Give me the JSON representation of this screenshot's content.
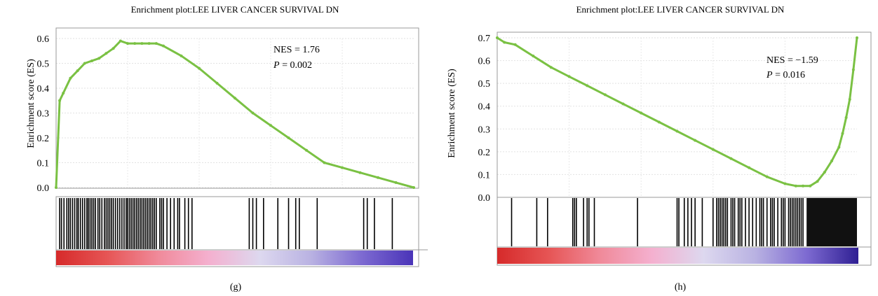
{
  "chart_data": [
    {
      "panel_label": "(g)",
      "type": "line",
      "title": "Enrichment plot:LEE LIVER CANCER SURVIVAL DN",
      "ylabel": "Enrichment score (ES)",
      "ylim": [
        0,
        0.6
      ],
      "yticks": [
        "0.0",
        "0.1",
        "0.2",
        "0.3",
        "0.4",
        "0.5",
        "0.6"
      ],
      "grid": true,
      "color": "#7ac143",
      "annotation": {
        "nes": "NES = 1.76",
        "p_symbol": "P",
        "p_rest": " = 0.002"
      },
      "series": [
        {
          "x": [
            0,
            0.01,
            0.02,
            0.04,
            0.06,
            0.08,
            0.1,
            0.12,
            0.14,
            0.16,
            0.18,
            0.2,
            0.22,
            0.24,
            0.26,
            0.28,
            0.3,
            0.35,
            0.4,
            0.45,
            0.5,
            0.55,
            0.6,
            0.65,
            0.7,
            0.75,
            0.8,
            0.85,
            0.9,
            0.95,
            1.0
          ],
          "y": [
            0.0,
            0.35,
            0.38,
            0.44,
            0.47,
            0.5,
            0.51,
            0.52,
            0.54,
            0.56,
            0.59,
            0.58,
            0.58,
            0.58,
            0.58,
            0.58,
            0.57,
            0.53,
            0.48,
            0.42,
            0.36,
            0.3,
            0.25,
            0.2,
            0.15,
            0.1,
            0.08,
            0.06,
            0.04,
            0.02,
            0.0
          ]
        }
      ],
      "hits": [
        0.01,
        0.015,
        0.022,
        0.03,
        0.035,
        0.04,
        0.046,
        0.052,
        0.058,
        0.062,
        0.068,
        0.074,
        0.08,
        0.086,
        0.09,
        0.095,
        0.1,
        0.105,
        0.11,
        0.117,
        0.122,
        0.128,
        0.135,
        0.14,
        0.145,
        0.15,
        0.155,
        0.16,
        0.166,
        0.172,
        0.178,
        0.184,
        0.19,
        0.196,
        0.2,
        0.205,
        0.21,
        0.215,
        0.22,
        0.225,
        0.23,
        0.235,
        0.24,
        0.245,
        0.25,
        0.255,
        0.26,
        0.265,
        0.27,
        0.275,
        0.28,
        0.29,
        0.295,
        0.3,
        0.31,
        0.32,
        0.33,
        0.34,
        0.345,
        0.36,
        0.37,
        0.38,
        0.54,
        0.55,
        0.56,
        0.58,
        0.62,
        0.65,
        0.67,
        0.68,
        0.73,
        0.86,
        0.87,
        0.89,
        0.94
      ],
      "gradient": [
        "#d62a2a",
        "#e65555",
        "#f08a9a",
        "#f4b0cf",
        "#ddd8ef",
        "#b9b2e2",
        "#7d6ad1",
        "#4a34b8"
      ]
    },
    {
      "panel_label": "(h)",
      "type": "line",
      "title": "Enrichment plot:LEE LIVER CANCER SURVIVAL DN",
      "ylabel": "Enrichment score (ES)",
      "ylim": [
        0,
        0.7
      ],
      "yticks": [
        "0.0",
        "0.1",
        "0.2",
        "0.3",
        "0.4",
        "0.5",
        "0.6",
        "0.7"
      ],
      "grid": true,
      "color": "#7ac143",
      "annotation": {
        "nes": "NES = −1.59",
        "p_symbol": "P",
        "p_rest": " = 0.016"
      },
      "series": [
        {
          "x": [
            0,
            0.02,
            0.05,
            0.1,
            0.15,
            0.2,
            0.25,
            0.3,
            0.35,
            0.4,
            0.45,
            0.5,
            0.55,
            0.6,
            0.65,
            0.7,
            0.75,
            0.8,
            0.83,
            0.85,
            0.87,
            0.89,
            0.91,
            0.93,
            0.95,
            0.96,
            0.97,
            0.98,
            0.99,
            1.0
          ],
          "y": [
            0.7,
            0.68,
            0.67,
            0.62,
            0.57,
            0.53,
            0.49,
            0.45,
            0.41,
            0.37,
            0.33,
            0.29,
            0.25,
            0.21,
            0.17,
            0.13,
            0.09,
            0.06,
            0.05,
            0.05,
            0.05,
            0.07,
            0.11,
            0.16,
            0.22,
            0.28,
            0.35,
            0.43,
            0.56,
            0.7
          ]
        }
      ],
      "hits": [
        0.04,
        0.11,
        0.14,
        0.21,
        0.215,
        0.22,
        0.24,
        0.25,
        0.255,
        0.27,
        0.39,
        0.5,
        0.505,
        0.52,
        0.53,
        0.54,
        0.55,
        0.57,
        0.6,
        0.61,
        0.615,
        0.62,
        0.625,
        0.63,
        0.635,
        0.64,
        0.65,
        0.655,
        0.66,
        0.67,
        0.675,
        0.68,
        0.69,
        0.7,
        0.71,
        0.72,
        0.73,
        0.735,
        0.74,
        0.75,
        0.76,
        0.765,
        0.77,
        0.78,
        0.79,
        0.795,
        0.8,
        0.81,
        0.815,
        0.82,
        0.825,
        0.83,
        0.835,
        0.84,
        0.845,
        0.85
      ],
      "dense_hit_block": [
        0.86,
        1.0
      ],
      "gradient": [
        "#d62a2a",
        "#e65555",
        "#f08a9a",
        "#f4b0cf",
        "#ddd8ef",
        "#b9b2e2",
        "#7d6ad1",
        "#2f1f93"
      ]
    }
  ]
}
